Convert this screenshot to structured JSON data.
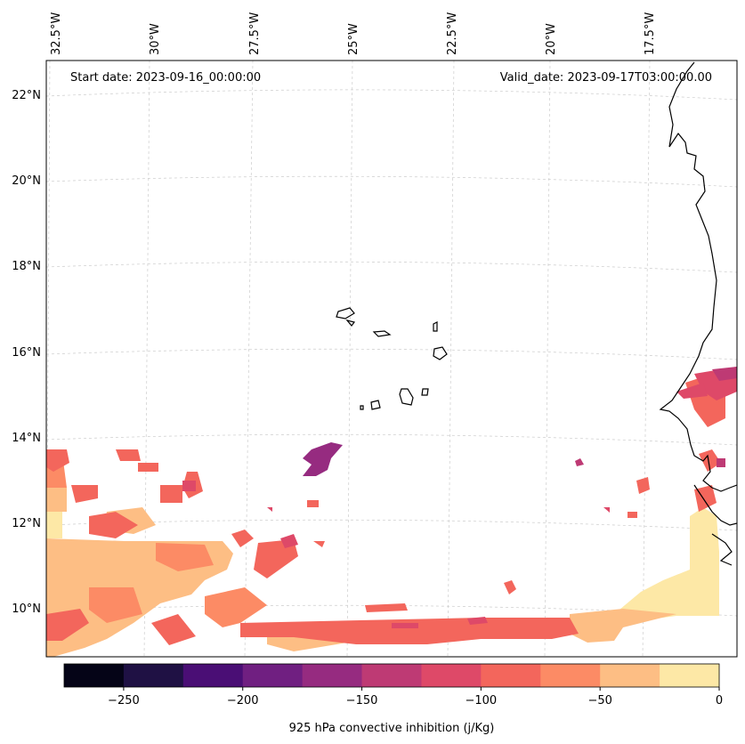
{
  "map": {
    "start_date_label": "Start date: 2023-09-16_00:00:00",
    "valid_date_label": "Valid_date: 2023-09-17T03:00:00.00",
    "lon_labels": [
      "32.5°W",
      "30°W",
      "27.5°W",
      "25°W",
      "22.5°W",
      "20°W",
      "17.5°W"
    ],
    "lat_labels": [
      "22°N",
      "20°N",
      "18°N",
      "16°N",
      "14°N",
      "12°N",
      "10°N"
    ],
    "regions": [
      "Cabo Verde",
      "Senegal coast",
      "Atlantic Ocean"
    ]
  },
  "colorbar": {
    "label": "925 hPa convective inhibition (j/Kg)",
    "ticks": [
      "−250",
      "−200",
      "−150",
      "−100",
      "−50",
      "0"
    ],
    "levels": [
      -275,
      -250,
      -225,
      -200,
      -175,
      -150,
      -125,
      -100,
      -75,
      -50,
      -25,
      0
    ],
    "colors": [
      "#050417",
      "#1f1144",
      "#4a0e75",
      "#701f81",
      "#962b80",
      "#be3a74",
      "#de4968",
      "#f3665c",
      "#fc8b65",
      "#fdbe84",
      "#fde8a6"
    ]
  }
}
